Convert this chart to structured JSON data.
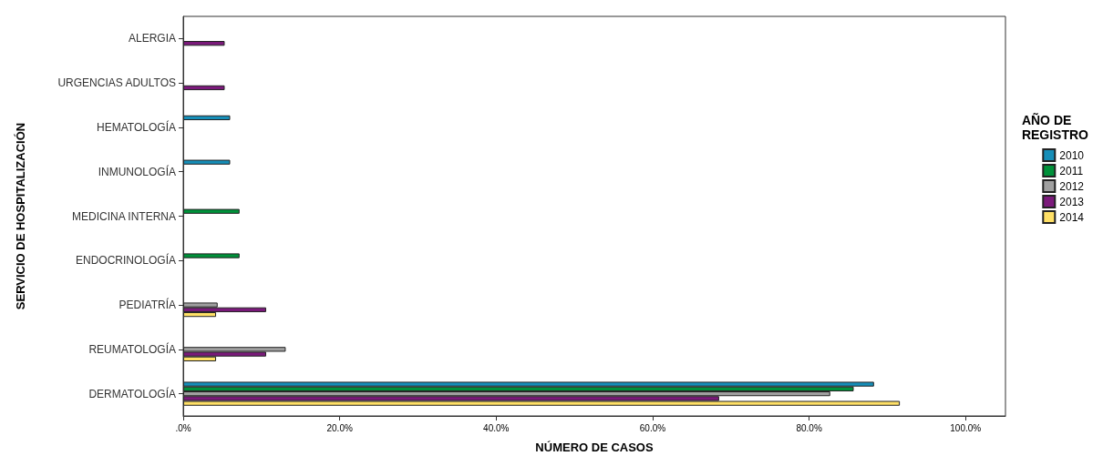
{
  "chart_data": {
    "type": "bar",
    "orientation": "horizontal",
    "xlabel": "NÚMERO DE CASOS",
    "ylabel": "SERVICIO DE HOSPITALIZACIÓN",
    "legend_title": "AÑO DE REGISTRO",
    "legend": "right",
    "grid": false,
    "categories": [
      "ALERGIA",
      "URGENCIAS ADULTOS",
      "HEMATOLOGÍA",
      "INMUNOLOGÍA",
      "MEDICINA INTERNA",
      "ENDOCRINOLOGÍA",
      "PEDIATRÍA",
      "REUMATOLOGÍA",
      "DERMATOLOGÍA"
    ],
    "xlim": [
      0,
      105.1
    ],
    "xticks": [
      {
        "value": 0,
        "label": ".0%"
      },
      {
        "value": 20,
        "label": "20.0%"
      },
      {
        "value": 40,
        "label": "40.0%"
      },
      {
        "value": 60,
        "label": "60.0%"
      },
      {
        "value": 80,
        "label": "80.0%"
      },
      {
        "value": 100,
        "label": "100.0%"
      }
    ],
    "series": [
      {
        "name": "2010",
        "color": "#168eb8",
        "values": [
          null,
          null,
          6.0,
          6.0,
          null,
          null,
          null,
          null,
          88.3
        ]
      },
      {
        "name": "2011",
        "color": "#00913a",
        "values": [
          null,
          null,
          null,
          null,
          7.2,
          7.2,
          null,
          null,
          85.7
        ]
      },
      {
        "name": "2012",
        "color": "#a0a0a0",
        "values": [
          null,
          null,
          null,
          null,
          null,
          null,
          4.4,
          13.1,
          82.7
        ]
      },
      {
        "name": "2013",
        "color": "#7b1a7b",
        "values": [
          5.3,
          5.3,
          null,
          null,
          null,
          null,
          10.6,
          10.6,
          68.5
        ]
      },
      {
        "name": "2014",
        "color": "#ffe066",
        "values": [
          null,
          null,
          null,
          null,
          null,
          null,
          4.2,
          4.2,
          91.6
        ]
      }
    ]
  }
}
